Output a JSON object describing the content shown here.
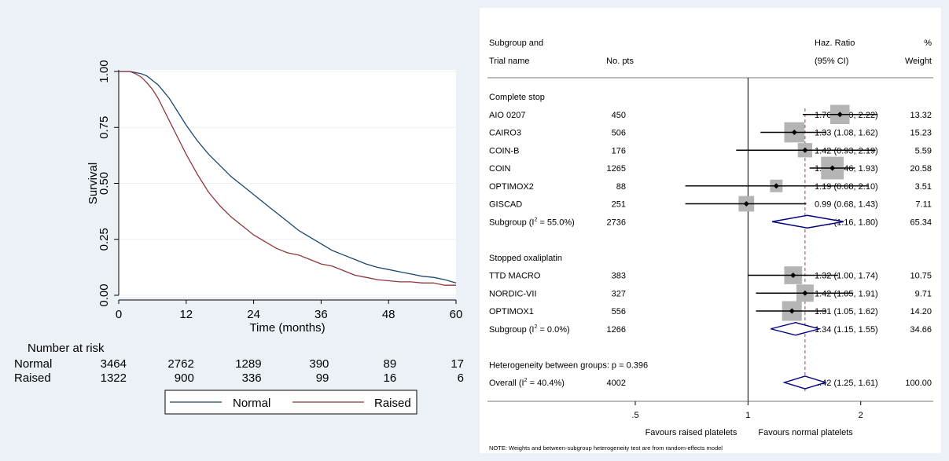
{
  "km": {
    "ylabel": "Survival",
    "xlabel": "Time (months)",
    "ylim": [
      0,
      1
    ],
    "xlim": [
      0,
      60
    ],
    "yticks": [
      "0.00",
      "0.25",
      "0.50",
      "0.75",
      "1.00"
    ],
    "xticks": [
      "0",
      "12",
      "24",
      "36",
      "48",
      "60"
    ],
    "grid": true,
    "risk_title": "Number at risk",
    "legend": {
      "normal": "Normal",
      "raised": "Raised"
    },
    "colors": {
      "normal": "#1a476f",
      "raised": "#90353b"
    }
  },
  "chart_data": [
    {
      "type": "line",
      "xlabel": "Time (months)",
      "ylabel": "Survival",
      "xlim": [
        0,
        60
      ],
      "ylim": [
        0,
        1
      ],
      "legend_position": "bottom",
      "series": [
        {
          "name": "Normal",
          "x": [
            0,
            2,
            3,
            4,
            5,
            6,
            7,
            8,
            9,
            10,
            12,
            14,
            16,
            18,
            20,
            22,
            24,
            26,
            28,
            30,
            32,
            34,
            36,
            38,
            40,
            42,
            44,
            46,
            48,
            50,
            52,
            54,
            56,
            58,
            60
          ],
          "y": [
            1.0,
            1.0,
            0.995,
            0.99,
            0.98,
            0.96,
            0.94,
            0.91,
            0.88,
            0.84,
            0.76,
            0.69,
            0.63,
            0.58,
            0.53,
            0.49,
            0.45,
            0.41,
            0.37,
            0.33,
            0.29,
            0.26,
            0.23,
            0.2,
            0.18,
            0.16,
            0.14,
            0.125,
            0.115,
            0.105,
            0.095,
            0.085,
            0.08,
            0.07,
            0.055
          ]
        },
        {
          "name": "Raised",
          "x": [
            0,
            2,
            3,
            4,
            5,
            6,
            7,
            8,
            9,
            10,
            12,
            14,
            16,
            18,
            20,
            22,
            24,
            26,
            28,
            30,
            32,
            34,
            36,
            38,
            40,
            42,
            44,
            46,
            48,
            50,
            52,
            54,
            56,
            58,
            60
          ],
          "y": [
            1.0,
            1.0,
            0.99,
            0.975,
            0.95,
            0.92,
            0.88,
            0.83,
            0.78,
            0.73,
            0.63,
            0.54,
            0.46,
            0.4,
            0.35,
            0.31,
            0.27,
            0.24,
            0.21,
            0.19,
            0.18,
            0.16,
            0.14,
            0.13,
            0.11,
            0.09,
            0.08,
            0.07,
            0.065,
            0.06,
            0.06,
            0.055,
            0.055,
            0.045,
            0.045
          ]
        }
      ],
      "risk_table": {
        "title": "Number at risk",
        "times": [
          "0",
          "12",
          "24",
          "36",
          "48",
          "60"
        ],
        "rows": [
          {
            "label": "Normal",
            "values": [
              "3464",
              "2762",
              "1289",
              "390",
              "89",
              "17"
            ]
          },
          {
            "label": "Raised",
            "values": [
              "1322",
              "900",
              "336",
              "99",
              "16",
              "6"
            ]
          }
        ]
      }
    },
    {
      "type": "forest",
      "xscale": "log",
      "xlim": [
        0.5,
        2.6
      ],
      "xticks": [
        0.5,
        1,
        2
      ],
      "xtick_labels": [
        ".5",
        "1",
        "2"
      ],
      "null_line": 1,
      "overall_line": 1.42,
      "header": {
        "col1_line1": "Subgroup and",
        "col1_line2": "Trial name",
        "col2": "No. pts",
        "col3_line1": "Haz. Ratio",
        "col3_line2": "(95% CI)",
        "col4_line1": "%",
        "col4_line2": "Weight"
      },
      "rows": [
        {
          "kind": "group",
          "label": "Complete stop"
        },
        {
          "kind": "study",
          "label": "AIO 0207",
          "n": "450",
          "hr": 1.76,
          "lo": 1.4,
          "hi": 2.22,
          "ci_text": "1.76 (1.40, 2.22)",
          "weight": "13.32",
          "w": 13.32
        },
        {
          "kind": "study",
          "label": "CAIRO3",
          "n": "506",
          "hr": 1.33,
          "lo": 1.08,
          "hi": 1.62,
          "ci_text": "1.33 (1.08, 1.62)",
          "weight": "15.23",
          "w": 15.23
        },
        {
          "kind": "study",
          "label": "COIN-B",
          "n": "176",
          "hr": 1.42,
          "lo": 0.93,
          "hi": 2.19,
          "ci_text": "1.42 (0.93, 2.19)",
          "weight": "5.59",
          "w": 5.59
        },
        {
          "kind": "study",
          "label": "COIN",
          "n": "1265",
          "hr": 1.68,
          "lo": 1.46,
          "hi": 1.93,
          "ci_text": "1.68 (1.46, 1.93)",
          "weight": "20.58",
          "w": 20.58
        },
        {
          "kind": "study",
          "label": "OPTIMOX2",
          "n": "88",
          "hr": 1.19,
          "lo": 0.68,
          "hi": 2.1,
          "ci_text": "1.19 (0.68, 2.10)",
          "weight": "3.51",
          "w": 3.51
        },
        {
          "kind": "study",
          "label": "GISCAD",
          "n": "251",
          "hr": 0.99,
          "lo": 0.68,
          "hi": 1.43,
          "ci_text": "0.99 (0.68, 1.43)",
          "weight": "7.11",
          "w": 7.11
        },
        {
          "kind": "subtotal",
          "label": "Subgroup (I",
          "sup": "2",
          "label_after": " = 55.0%)",
          "n": "2736",
          "hr": 1.44,
          "lo": 1.16,
          "hi": 1.8,
          "ci_text": "1.44 (1.16, 1.80)",
          "weight": "65.34"
        },
        {
          "kind": "blank"
        },
        {
          "kind": "group",
          "label": "Stopped oxaliplatin"
        },
        {
          "kind": "study",
          "label": "TTD MACRO",
          "n": "383",
          "hr": 1.32,
          "lo": 1.0,
          "hi": 1.74,
          "ci_text": "1.32 (1.00, 1.74)",
          "weight": "10.75",
          "w": 10.75
        },
        {
          "kind": "study",
          "label": "NORDIC-VII",
          "n": "327",
          "hr": 1.42,
          "lo": 1.05,
          "hi": 1.91,
          "ci_text": "1.42 (1.05, 1.91)",
          "weight": "9.71",
          "w": 9.71
        },
        {
          "kind": "study",
          "label": "OPTIMOX1",
          "n": "556",
          "hr": 1.31,
          "lo": 1.05,
          "hi": 1.62,
          "ci_text": "1.31 (1.05, 1.62)",
          "weight": "14.20",
          "w": 14.2
        },
        {
          "kind": "subtotal",
          "label": "Subgroup (I",
          "sup": "2",
          "label_after": " = 0.0%)",
          "n": "1266",
          "hr": 1.34,
          "lo": 1.15,
          "hi": 1.55,
          "ci_text": "1.34 (1.15, 1.55)",
          "weight": "34.66"
        },
        {
          "kind": "blank"
        },
        {
          "kind": "note",
          "label": "Heterogeneity between groups: p = 0.396"
        },
        {
          "kind": "overall",
          "label": "Overall (I",
          "sup": "2",
          "label_after": " = 40.4%)",
          "n": "4002",
          "hr": 1.42,
          "lo": 1.25,
          "hi": 1.61,
          "ci_text": "1.42 (1.25, 1.61)",
          "weight": "100.00"
        }
      ],
      "favours_left": "Favours raised platelets",
      "favours_right": "Favours normal platelets",
      "footnote": "NOTE: Weights and between-subgroup heterogeneity test are from random-effects model",
      "colors": {
        "box": "#b4b4b4",
        "diamond": "#000080",
        "overall_line": "#a03c50"
      }
    }
  ]
}
